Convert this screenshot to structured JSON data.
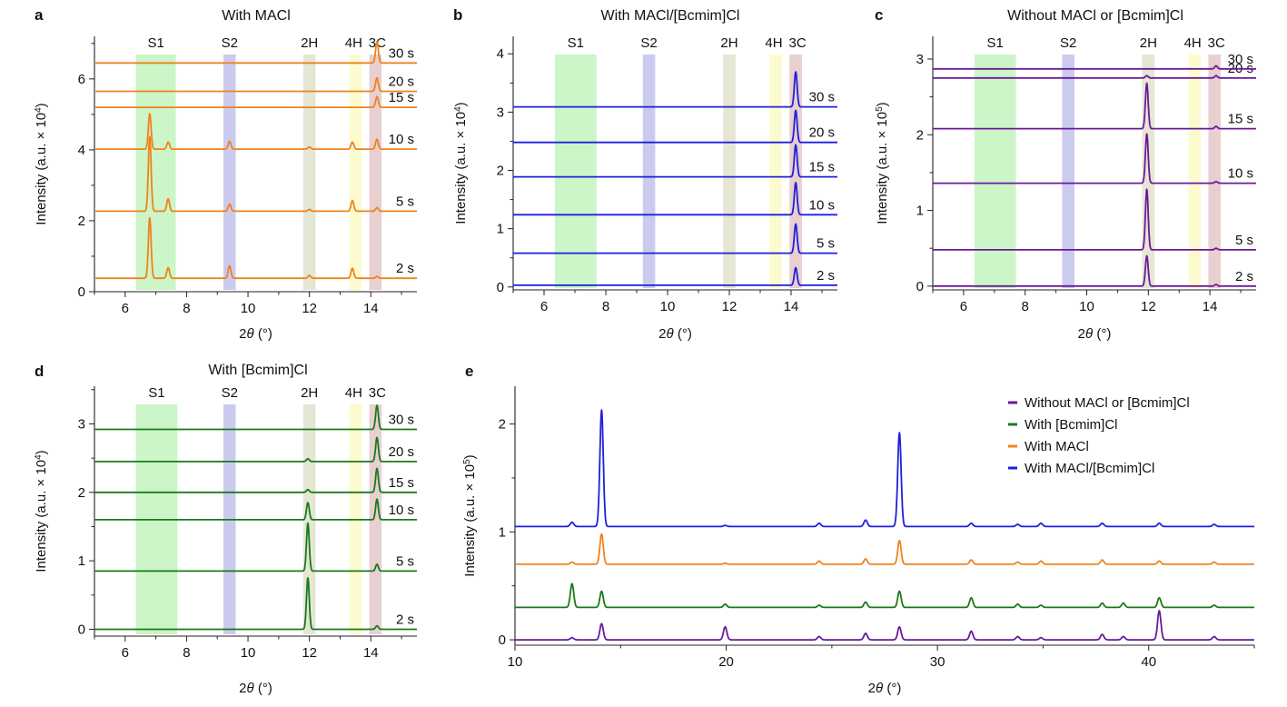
{
  "chart_data": [
    {
      "id": "a",
      "panel_letter": "a",
      "type": "line",
      "title": "With MACl",
      "xlabel_pre": "2",
      "xlabel_theta": "θ",
      "xlabel_post": " (°)",
      "ylabel": "Intensity (a.u. × 10",
      "ylabel_exp": "4",
      "ylabel_close": ")",
      "xlim": [
        5,
        15.5
      ],
      "ylim": [
        0,
        7.2
      ],
      "xticks": [
        6,
        8,
        10,
        12,
        14
      ],
      "xtick_labels": [
        "6",
        "8",
        "10",
        "12",
        "14"
      ],
      "yticks": [
        0,
        2,
        4,
        6
      ],
      "ytick_labels": [
        "0",
        "2",
        "4",
        "6"
      ],
      "color": "#f0821e",
      "bands": [
        {
          "label": "S1",
          "from": 6.35,
          "to": 7.65,
          "color": "#ccf5c8"
        },
        {
          "label": "S2",
          "from": 9.2,
          "to": 9.6,
          "color": "#cbcbf0"
        },
        {
          "label": "2H",
          "from": 11.8,
          "to": 12.2,
          "color": "#e5e6d3"
        },
        {
          "label": "4H",
          "from": 13.3,
          "to": 13.7,
          "color": "#fbfbcf"
        },
        {
          "label": "3C",
          "from": 13.95,
          "to": 14.35,
          "color": "#e8cfd0"
        }
      ],
      "series": [
        {
          "name": "2 s",
          "baseline": 0.38,
          "peaks": [
            [
              6.8,
              1.7
            ],
            [
              7.4,
              0.3
            ],
            [
              9.4,
              0.35
            ],
            [
              12.0,
              0.08
            ],
            [
              13.4,
              0.28
            ],
            [
              14.2,
              0.05
            ]
          ]
        },
        {
          "name": "5 s",
          "baseline": 2.27,
          "peaks": [
            [
              6.8,
              2.1
            ],
            [
              7.4,
              0.35
            ],
            [
              9.4,
              0.2
            ],
            [
              12.0,
              0.05
            ],
            [
              13.4,
              0.3
            ],
            [
              14.2,
              0.1
            ]
          ]
        },
        {
          "name": "10 s",
          "baseline": 4.02,
          "peaks": [
            [
              6.8,
              1.0
            ],
            [
              7.4,
              0.2
            ],
            [
              9.4,
              0.22
            ],
            [
              12.0,
              0.06
            ],
            [
              13.4,
              0.2
            ],
            [
              14.2,
              0.28
            ]
          ]
        },
        {
          "name": "15 s",
          "baseline": 5.2,
          "peaks": [
            [
              14.2,
              0.3
            ]
          ]
        },
        {
          "name": "20 s",
          "baseline": 5.65,
          "peaks": [
            [
              14.2,
              0.38
            ]
          ]
        },
        {
          "name": "30 s",
          "baseline": 6.45,
          "peaks": [
            [
              14.2,
              0.6
            ]
          ]
        }
      ]
    },
    {
      "id": "b",
      "panel_letter": "b",
      "type": "line",
      "title": "With MACl/[Bcmim]Cl",
      "xlabel_pre": "2",
      "xlabel_theta": "θ",
      "xlabel_post": " (°)",
      "ylabel": "Intensity (a.u. × 10",
      "ylabel_exp": "4",
      "ylabel_close": ")",
      "xlim": [
        5,
        15.5
      ],
      "ylim": [
        -0.05,
        4.3
      ],
      "xticks": [
        6,
        8,
        10,
        12,
        14
      ],
      "xtick_labels": [
        "6",
        "8",
        "10",
        "12",
        "14"
      ],
      "yticks": [
        0,
        1,
        2,
        3,
        4
      ],
      "ytick_labels": [
        "0",
        "1",
        "2",
        "3",
        "4"
      ],
      "color": "#1f1fdd",
      "bands": [
        {
          "label": "S1",
          "from": 6.35,
          "to": 7.7,
          "color": "#ccf5c8"
        },
        {
          "label": "S2",
          "from": 9.2,
          "to": 9.6,
          "color": "#cbcbf0"
        },
        {
          "label": "2H",
          "from": 11.8,
          "to": 12.2,
          "color": "#e5e6d3"
        },
        {
          "label": "4H",
          "from": 13.3,
          "to": 13.7,
          "color": "#fbfbcf"
        },
        {
          "label": "3C",
          "from": 13.95,
          "to": 14.35,
          "color": "#e8cfd0"
        }
      ],
      "series": [
        {
          "name": "2 s",
          "baseline": 0.03,
          "peaks": [
            [
              14.15,
              0.3
            ]
          ]
        },
        {
          "name": "5 s",
          "baseline": 0.58,
          "peaks": [
            [
              14.15,
              0.5
            ]
          ]
        },
        {
          "name": "10 s",
          "baseline": 1.24,
          "peaks": [
            [
              14.15,
              0.55
            ]
          ]
        },
        {
          "name": "15 s",
          "baseline": 1.89,
          "peaks": [
            [
              14.15,
              0.55
            ]
          ]
        },
        {
          "name": "20 s",
          "baseline": 2.48,
          "peaks": [
            [
              14.15,
              0.55
            ]
          ]
        },
        {
          "name": "30 s",
          "baseline": 3.09,
          "peaks": [
            [
              14.15,
              0.6
            ]
          ]
        }
      ]
    },
    {
      "id": "c",
      "panel_letter": "c",
      "type": "line",
      "title": "Without MACl or [Bcmim]Cl",
      "xlabel_pre": "2",
      "xlabel_theta": "θ",
      "xlabel_post": " (°)",
      "ylabel": "Intensity (a.u. × 10",
      "ylabel_exp": "5",
      "ylabel_close": ")",
      "xlim": [
        5,
        15.5
      ],
      "ylim": [
        -0.05,
        3.3
      ],
      "xticks": [
        6,
        8,
        10,
        12,
        14
      ],
      "xtick_labels": [
        "6",
        "8",
        "10",
        "12",
        "14"
      ],
      "yticks": [
        0,
        1,
        2,
        3
      ],
      "ytick_labels": [
        "0",
        "1",
        "2",
        "3"
      ],
      "color": "#6a1a9a",
      "bands": [
        {
          "label": "S1",
          "from": 6.35,
          "to": 7.7,
          "color": "#ccf5c8"
        },
        {
          "label": "S2",
          "from": 9.2,
          "to": 9.6,
          "color": "#cbcbf0"
        },
        {
          "label": "2H",
          "from": 11.8,
          "to": 12.2,
          "color": "#e5e6d3"
        },
        {
          "label": "4H",
          "from": 13.3,
          "to": 13.7,
          "color": "#fbfbcf"
        },
        {
          "label": "3C",
          "from": 13.95,
          "to": 14.35,
          "color": "#e8cfd0"
        }
      ],
      "series": [
        {
          "name": "2 s",
          "baseline": 0.0,
          "peaks": [
            [
              11.95,
              0.4
            ],
            [
              14.2,
              0.02
            ]
          ]
        },
        {
          "name": "5 s",
          "baseline": 0.48,
          "peaks": [
            [
              11.95,
              0.8
            ],
            [
              14.2,
              0.02
            ]
          ]
        },
        {
          "name": "10 s",
          "baseline": 1.36,
          "peaks": [
            [
              11.95,
              0.65
            ],
            [
              14.2,
              0.02
            ]
          ]
        },
        {
          "name": "15 s",
          "baseline": 2.08,
          "peaks": [
            [
              11.95,
              0.6
            ],
            [
              14.2,
              0.03
            ]
          ]
        },
        {
          "name": "20 s",
          "baseline": 2.75,
          "peaks": [
            [
              11.95,
              0.03
            ],
            [
              14.2,
              0.03
            ]
          ]
        },
        {
          "name": "30 s",
          "baseline": 2.87,
          "peaks": [
            [
              14.2,
              0.04
            ]
          ]
        }
      ]
    },
    {
      "id": "d",
      "panel_letter": "d",
      "type": "line",
      "title": "With [Bcmim]Cl",
      "xlabel_pre": "2",
      "xlabel_theta": "θ",
      "xlabel_post": " (°)",
      "ylabel": "Intensity (a.u. × 10",
      "ylabel_exp": "4",
      "ylabel_close": ")",
      "xlim": [
        5,
        15.5
      ],
      "ylim": [
        -0.1,
        3.55
      ],
      "xticks": [
        6,
        8,
        10,
        12,
        14
      ],
      "xtick_labels": [
        "6",
        "8",
        "10",
        "12",
        "14"
      ],
      "yticks": [
        0,
        1,
        2,
        3
      ],
      "ytick_labels": [
        "0",
        "1",
        "2",
        "3"
      ],
      "color": "#1a7a1a",
      "bands": [
        {
          "label": "S1",
          "from": 6.35,
          "to": 7.7,
          "color": "#ccf5c8"
        },
        {
          "label": "S2",
          "from": 9.2,
          "to": 9.6,
          "color": "#cbcbf0"
        },
        {
          "label": "2H",
          "from": 11.8,
          "to": 12.2,
          "color": "#e5e6d3"
        },
        {
          "label": "4H",
          "from": 13.3,
          "to": 13.7,
          "color": "#fbfbcf"
        },
        {
          "label": "3C",
          "from": 13.95,
          "to": 14.35,
          "color": "#e8cfd0"
        }
      ],
      "series": [
        {
          "name": "2 s",
          "baseline": 0.0,
          "peaks": [
            [
              11.95,
              0.75
            ],
            [
              14.2,
              0.05
            ]
          ]
        },
        {
          "name": "5 s",
          "baseline": 0.85,
          "peaks": [
            [
              11.95,
              0.7
            ],
            [
              14.2,
              0.1
            ]
          ]
        },
        {
          "name": "10 s",
          "baseline": 1.6,
          "peaks": [
            [
              11.95,
              0.25
            ],
            [
              14.2,
              0.3
            ]
          ]
        },
        {
          "name": "15 s",
          "baseline": 2.0,
          "peaks": [
            [
              11.95,
              0.04
            ],
            [
              14.2,
              0.35
            ]
          ]
        },
        {
          "name": "20 s",
          "baseline": 2.45,
          "peaks": [
            [
              11.95,
              0.04
            ],
            [
              14.2,
              0.35
            ]
          ]
        },
        {
          "name": "30 s",
          "baseline": 2.92,
          "peaks": [
            [
              14.2,
              0.35
            ]
          ]
        }
      ]
    },
    {
      "id": "e",
      "panel_letter": "e",
      "type": "line",
      "title": "",
      "xlabel_pre": "2",
      "xlabel_theta": "θ",
      "xlabel_post": " (°)",
      "ylabel": "Intensity (a.u. × 10",
      "ylabel_exp": "5",
      "ylabel_close": ")",
      "xlim": [
        10,
        45
      ],
      "ylim": [
        -0.05,
        2.35
      ],
      "xticks": [
        10,
        20,
        30,
        40
      ],
      "xtick_labels": [
        "10",
        "20",
        "30",
        "40"
      ],
      "yticks": [
        0,
        1,
        2
      ],
      "ytick_labels": [
        "0",
        "1",
        "2"
      ],
      "legend_position": "top-right",
      "series": [
        {
          "name": "Without MACl or [Bcmim]Cl",
          "color": "#6a1a9a",
          "baseline": 0.0,
          "peaks": [
            [
              12.7,
              0.02
            ],
            [
              14.1,
              0.15
            ],
            [
              19.95,
              0.12
            ],
            [
              24.4,
              0.03
            ],
            [
              26.6,
              0.06
            ],
            [
              28.2,
              0.12
            ],
            [
              31.6,
              0.08
            ],
            [
              33.8,
              0.03
            ],
            [
              34.9,
              0.02
            ],
            [
              37.8,
              0.05
            ],
            [
              38.8,
              0.03
            ],
            [
              40.5,
              0.27
            ],
            [
              43.1,
              0.03
            ]
          ]
        },
        {
          "name": "With [Bcmim]Cl",
          "color": "#1a7a1a",
          "baseline": 0.3,
          "peaks": [
            [
              12.7,
              0.22
            ],
            [
              14.1,
              0.15
            ],
            [
              19.95,
              0.03
            ],
            [
              24.4,
              0.02
            ],
            [
              26.6,
              0.05
            ],
            [
              28.2,
              0.15
            ],
            [
              31.6,
              0.09
            ],
            [
              33.8,
              0.03
            ],
            [
              34.9,
              0.02
            ],
            [
              37.8,
              0.04
            ],
            [
              38.8,
              0.04
            ],
            [
              40.5,
              0.09
            ],
            [
              43.1,
              0.02
            ]
          ]
        },
        {
          "name": "With MACl",
          "color": "#f0821e",
          "baseline": 0.7,
          "peaks": [
            [
              12.7,
              0.02
            ],
            [
              14.1,
              0.28
            ],
            [
              19.95,
              0.01
            ],
            [
              24.4,
              0.03
            ],
            [
              26.6,
              0.05
            ],
            [
              28.2,
              0.22
            ],
            [
              31.6,
              0.04
            ],
            [
              33.8,
              0.02
            ],
            [
              34.9,
              0.03
            ],
            [
              37.8,
              0.04
            ],
            [
              40.5,
              0.03
            ],
            [
              43.1,
              0.02
            ]
          ]
        },
        {
          "name": "With MACl/[Bcmim]Cl",
          "color": "#1f1fdd",
          "baseline": 1.05,
          "peaks": [
            [
              12.7,
              0.04
            ],
            [
              14.1,
              1.08
            ],
            [
              19.95,
              0.01
            ],
            [
              24.4,
              0.03
            ],
            [
              26.6,
              0.06
            ],
            [
              28.2,
              0.87
            ],
            [
              31.6,
              0.03
            ],
            [
              33.8,
              0.02
            ],
            [
              34.9,
              0.03
            ],
            [
              37.8,
              0.03
            ],
            [
              40.5,
              0.03
            ],
            [
              43.1,
              0.02
            ]
          ]
        }
      ]
    }
  ]
}
